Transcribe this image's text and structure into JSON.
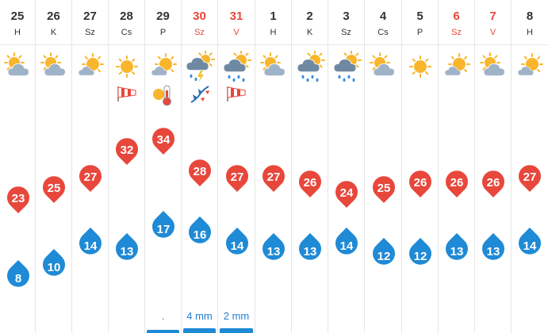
{
  "days": [
    {
      "date": "25",
      "abbr": "H",
      "weekend": false,
      "icon": "sun-cloud-icon",
      "extras": [],
      "max": 23,
      "min": 8,
      "precip": "",
      "precip_amount": 0
    },
    {
      "date": "26",
      "abbr": "K",
      "weekend": false,
      "icon": "sun-cloud-icon",
      "extras": [],
      "max": 25,
      "min": 10,
      "precip": "",
      "precip_amount": 0
    },
    {
      "date": "27",
      "abbr": "Sz",
      "weekend": false,
      "icon": "sun-small-cloud-icon",
      "extras": [],
      "max": 27,
      "min": 14,
      "precip": "",
      "precip_amount": 0
    },
    {
      "date": "28",
      "abbr": "Cs",
      "weekend": false,
      "icon": "sun-icon",
      "extras": [
        "windsock-icon"
      ],
      "max": 32,
      "min": 13,
      "precip": "",
      "precip_amount": 0
    },
    {
      "date": "29",
      "abbr": "P",
      "weekend": false,
      "icon": "sun-small-cloud-icon",
      "extras": [
        "hot-thermometer-icon"
      ],
      "max": 34,
      "min": 17,
      "precip": ".",
      "precip_amount": 0.2
    },
    {
      "date": "30",
      "abbr": "Sz",
      "weekend": true,
      "icon": "thunderstorm-icon",
      "extras": [
        "cold-front-icon"
      ],
      "max": 28,
      "min": 16,
      "precip": "4 mm",
      "precip_amount": 4
    },
    {
      "date": "31",
      "abbr": "V",
      "weekend": true,
      "icon": "sun-rain-cloud-icon",
      "extras": [
        "windsock-icon"
      ],
      "max": 27,
      "min": 14,
      "precip": "2 mm",
      "precip_amount": 2
    },
    {
      "date": "1",
      "abbr": "H",
      "weekend": false,
      "icon": "sun-cloud-icon",
      "extras": [],
      "max": 27,
      "min": 13,
      "precip": "",
      "precip_amount": 0
    },
    {
      "date": "2",
      "abbr": "K",
      "weekend": false,
      "icon": "sun-rain-cloud-icon",
      "extras": [],
      "max": 26,
      "min": 13,
      "precip": "",
      "precip_amount": 0
    },
    {
      "date": "3",
      "abbr": "Sz",
      "weekend": false,
      "icon": "sun-rain-cloud-icon",
      "extras": [],
      "max": 24,
      "min": 14,
      "precip": "",
      "precip_amount": 0
    },
    {
      "date": "4",
      "abbr": "Cs",
      "weekend": false,
      "icon": "sun-cloud-icon",
      "extras": [],
      "max": 25,
      "min": 12,
      "precip": "",
      "precip_amount": 0
    },
    {
      "date": "5",
      "abbr": "P",
      "weekend": false,
      "icon": "sun-icon",
      "extras": [],
      "max": 26,
      "min": 12,
      "precip": "",
      "precip_amount": 0
    },
    {
      "date": "6",
      "abbr": "Sz",
      "weekend": true,
      "icon": "sun-small-cloud-icon",
      "extras": [],
      "max": 26,
      "min": 13,
      "precip": "",
      "precip_amount": 0
    },
    {
      "date": "7",
      "abbr": "V",
      "weekend": true,
      "icon": "sun-cloud-icon",
      "extras": [],
      "max": 26,
      "min": 13,
      "precip": "",
      "precip_amount": 0
    },
    {
      "date": "8",
      "abbr": "H",
      "weekend": false,
      "icon": "sun-small-cloud-icon",
      "extras": [],
      "max": 27,
      "min": 14,
      "precip": "",
      "precip_amount": 0
    }
  ],
  "temp_scale": {
    "max_temp": 34,
    "min_temp": 8
  },
  "colors": {
    "max_pin": "#e8473c",
    "min_pin": "#1f8ad6",
    "weekend_text": "#e8473c",
    "text": "#333333",
    "precip_text": "#1f7fd1",
    "sun": "#f9b52b",
    "cloud": "#9fb3c8",
    "rain_cloud": "#6f89a3",
    "rain_drop": "#3a8ee0",
    "lightning": "#f2c12e"
  }
}
